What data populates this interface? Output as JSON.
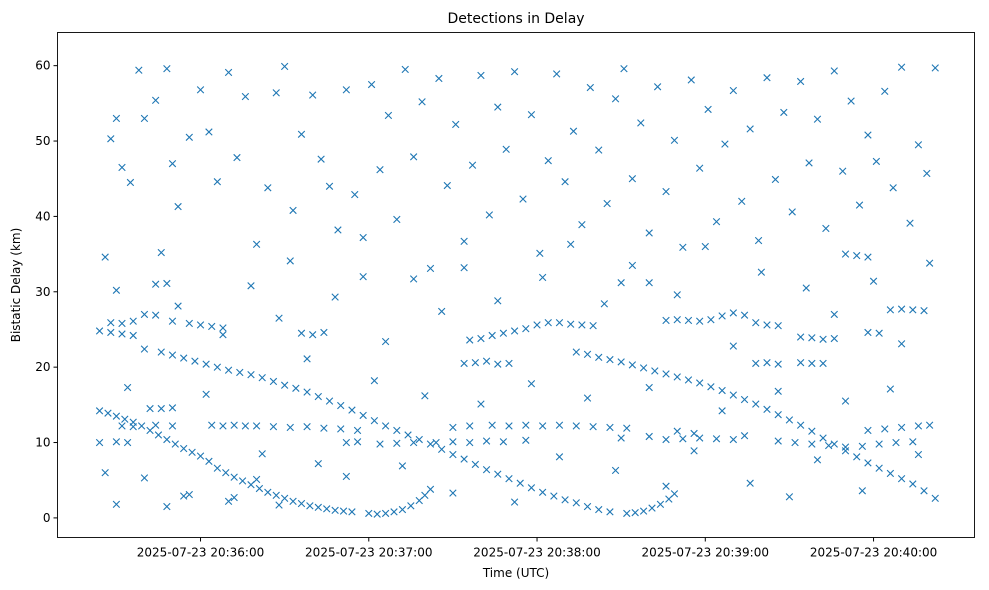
{
  "chart_data": {
    "type": "scatter",
    "title": "Detections in Delay",
    "xlabel": "Time (UTC)",
    "ylabel": "Bistatic Delay (km)",
    "x_units": "seconds relative to 2025-07-23 20:36:00",
    "xlim": [
      -51,
      276
    ],
    "ylim": [
      -2.6,
      64.4
    ],
    "marker": "x",
    "color": "#1f77b4",
    "grid": false,
    "xticks": [
      {
        "value": 0,
        "label": "2025-07-23 20:36:00"
      },
      {
        "value": 60,
        "label": "2025-07-23 20:37:00"
      },
      {
        "value": 120,
        "label": "2025-07-23 20:38:00"
      },
      {
        "value": 180,
        "label": "2025-07-23 20:39:00"
      },
      {
        "value": 240,
        "label": "2025-07-23 20:40:00"
      }
    ],
    "yticks": [
      {
        "value": 0,
        "label": "0"
      },
      {
        "value": 10,
        "label": "10"
      },
      {
        "value": 20,
        "label": "20"
      },
      {
        "value": 30,
        "label": "30"
      },
      {
        "value": 40,
        "label": "40"
      },
      {
        "value": 50,
        "label": "50"
      },
      {
        "value": 60,
        "label": "60"
      }
    ],
    "points": [
      [
        -36,
        14.2
      ],
      [
        -33,
        13.9
      ],
      [
        -30,
        13.5
      ],
      [
        -27,
        13.1
      ],
      [
        -24,
        12.7
      ],
      [
        -21,
        12.2
      ],
      [
        -18,
        11.6
      ],
      [
        -15,
        11
      ],
      [
        -12,
        10.4
      ],
      [
        -9,
        9.8
      ],
      [
        -6,
        9.2
      ],
      [
        -3,
        8.7
      ],
      [
        0,
        8.2
      ],
      [
        3,
        7.5
      ],
      [
        6,
        6.6
      ],
      [
        9,
        6
      ],
      [
        12,
        5.4
      ],
      [
        15,
        4.9
      ],
      [
        18,
        4.4
      ],
      [
        21,
        3.9
      ],
      [
        24,
        3.4
      ],
      [
        27,
        3
      ],
      [
        30,
        2.6
      ],
      [
        33,
        2.2
      ],
      [
        36,
        1.9
      ],
      [
        39,
        1.6
      ],
      [
        42,
        1.4
      ],
      [
        45,
        1.2
      ],
      [
        48,
        1
      ],
      [
        51,
        0.9
      ],
      [
        54,
        0.8
      ],
      [
        60,
        0.6
      ],
      [
        63,
        0.5
      ],
      [
        66,
        0.6
      ],
      [
        69,
        0.8
      ],
      [
        72,
        1.1
      ],
      [
        75,
        1.6
      ],
      [
        78,
        2.3
      ],
      [
        80,
        3
      ],
      [
        82,
        3.8
      ],
      [
        -14,
        22
      ],
      [
        -10,
        21.6
      ],
      [
        -6,
        21.2
      ],
      [
        -2,
        20.8
      ],
      [
        2,
        20.4
      ],
      [
        6,
        20
      ],
      [
        10,
        19.6
      ],
      [
        14,
        19.3
      ],
      [
        18,
        19
      ],
      [
        22,
        18.6
      ],
      [
        26,
        18.1
      ],
      [
        30,
        17.6
      ],
      [
        34,
        17.2
      ],
      [
        38,
        16.7
      ],
      [
        42,
        16.1
      ],
      [
        46,
        15.5
      ],
      [
        50,
        14.9
      ],
      [
        54,
        14.3
      ],
      [
        58,
        13.6
      ],
      [
        62,
        12.9
      ],
      [
        66,
        12.2
      ],
      [
        70,
        11.6
      ],
      [
        74,
        11
      ],
      [
        78,
        10.4
      ],
      [
        82,
        9.8
      ],
      [
        86,
        9.1
      ],
      [
        90,
        8.4
      ],
      [
        94,
        7.8
      ],
      [
        98,
        7.1
      ],
      [
        102,
        6.4
      ],
      [
        106,
        5.8
      ],
      [
        110,
        5.2
      ],
      [
        114,
        4.6
      ],
      [
        118,
        4
      ],
      [
        122,
        3.4
      ],
      [
        126,
        2.9
      ],
      [
        130,
        2.4
      ],
      [
        134,
        2
      ],
      [
        138,
        1.5
      ],
      [
        142,
        1.1
      ],
      [
        146,
        0.8
      ],
      [
        152,
        0.6
      ],
      [
        155,
        0.7
      ],
      [
        158,
        0.9
      ],
      [
        161,
        1.3
      ],
      [
        164,
        1.8
      ],
      [
        167,
        2.5
      ],
      [
        169,
        3.2
      ],
      [
        134,
        22
      ],
      [
        138,
        21.7
      ],
      [
        142,
        21.3
      ],
      [
        146,
        21
      ],
      [
        150,
        20.7
      ],
      [
        154,
        20.3
      ],
      [
        158,
        19.9
      ],
      [
        162,
        19.5
      ],
      [
        166,
        19.1
      ],
      [
        170,
        18.7
      ],
      [
        174,
        18.3
      ],
      [
        178,
        17.9
      ],
      [
        182,
        17.4
      ],
      [
        186,
        16.9
      ],
      [
        190,
        16.3
      ],
      [
        194,
        15.7
      ],
      [
        198,
        15.1
      ],
      [
        202,
        14.4
      ],
      [
        206,
        13.7
      ],
      [
        210,
        13
      ],
      [
        214,
        12.3
      ],
      [
        218,
        11.5
      ],
      [
        222,
        10.6
      ],
      [
        226,
        9.8
      ],
      [
        230,
        8.9
      ],
      [
        234,
        8.1
      ],
      [
        238,
        7.3
      ],
      [
        242,
        6.6
      ],
      [
        246,
        5.9
      ],
      [
        250,
        5.2
      ],
      [
        254,
        4.5
      ],
      [
        258,
        3.6
      ],
      [
        262,
        2.6
      ],
      [
        -28,
        12.2
      ],
      [
        -24,
        12.1
      ],
      [
        -16,
        12.3
      ],
      [
        -10,
        12.2
      ],
      [
        4,
        12.3
      ],
      [
        8,
        12.2
      ],
      [
        12,
        12.3
      ],
      [
        16,
        12.2
      ],
      [
        20,
        12.2
      ],
      [
        26,
        12.1
      ],
      [
        32,
        12
      ],
      [
        38,
        12.1
      ],
      [
        44,
        11.9
      ],
      [
        50,
        11.8
      ],
      [
        56,
        11.6
      ],
      [
        90,
        12
      ],
      [
        96,
        12.2
      ],
      [
        104,
        12.3
      ],
      [
        110,
        12.2
      ],
      [
        116,
        12.3
      ],
      [
        122,
        12.2
      ],
      [
        128,
        12.3
      ],
      [
        134,
        12.2
      ],
      [
        140,
        12.1
      ],
      [
        146,
        12
      ],
      [
        152,
        11.9
      ],
      [
        170,
        11.5
      ],
      [
        176,
        11.2
      ],
      [
        194,
        10.9
      ],
      [
        238,
        11.6
      ],
      [
        244,
        11.8
      ],
      [
        250,
        12
      ],
      [
        256,
        12.2
      ],
      [
        260,
        12.3
      ],
      [
        -36,
        10
      ],
      [
        -30,
        10.1
      ],
      [
        -26,
        10
      ],
      [
        52,
        10
      ],
      [
        56,
        10.1
      ],
      [
        64,
        9.8
      ],
      [
        70,
        9.9
      ],
      [
        76,
        10
      ],
      [
        84,
        10
      ],
      [
        90,
        10.1
      ],
      [
        96,
        10
      ],
      [
        102,
        10.2
      ],
      [
        108,
        10.1
      ],
      [
        116,
        10.3
      ],
      [
        150,
        10.6
      ],
      [
        160,
        10.8
      ],
      [
        166,
        10.4
      ],
      [
        172,
        10.5
      ],
      [
        178,
        10.6
      ],
      [
        184,
        10.5
      ],
      [
        190,
        10.4
      ],
      [
        206,
        10.2
      ],
      [
        212,
        10
      ],
      [
        218,
        9.8
      ],
      [
        224,
        9.6
      ],
      [
        230,
        9.4
      ],
      [
        236,
        9.5
      ],
      [
        242,
        9.8
      ],
      [
        248,
        10
      ],
      [
        254,
        10.1
      ],
      [
        -36,
        24.8
      ],
      [
        -32,
        24.6
      ],
      [
        -28,
        24.4
      ],
      [
        -24,
        24.2
      ],
      [
        -32,
        25.9
      ],
      [
        -28,
        25.8
      ],
      [
        -24,
        26.1
      ],
      [
        -20,
        27
      ],
      [
        -16,
        26.9
      ],
      [
        -10,
        26.1
      ],
      [
        -4,
        25.8
      ],
      [
        0,
        25.6
      ],
      [
        4,
        25.4
      ],
      [
        8,
        25.2
      ],
      [
        36,
        24.5
      ],
      [
        40,
        24.3
      ],
      [
        44,
        24.6
      ],
      [
        96,
        23.6
      ],
      [
        100,
        23.8
      ],
      [
        104,
        24.2
      ],
      [
        108,
        24.5
      ],
      [
        112,
        24.8
      ],
      [
        116,
        25.1
      ],
      [
        120,
        25.6
      ],
      [
        124,
        25.9
      ],
      [
        128,
        25.9
      ],
      [
        132,
        25.7
      ],
      [
        136,
        25.6
      ],
      [
        140,
        25.5
      ],
      [
        150,
        31.2
      ],
      [
        166,
        26.2
      ],
      [
        170,
        26.3
      ],
      [
        174,
        26.2
      ],
      [
        178,
        26.1
      ],
      [
        182,
        26.3
      ],
      [
        186,
        26.8
      ],
      [
        190,
        27.2
      ],
      [
        194,
        26.9
      ],
      [
        198,
        25.9
      ],
      [
        202,
        25.6
      ],
      [
        206,
        25.5
      ],
      [
        214,
        24
      ],
      [
        218,
        23.9
      ],
      [
        222,
        23.7
      ],
      [
        226,
        23.8
      ],
      [
        246,
        27.6
      ],
      [
        250,
        27.7
      ],
      [
        254,
        27.6
      ],
      [
        258,
        27.5
      ],
      [
        238,
        24.6
      ],
      [
        242,
        24.5
      ],
      [
        94,
        20.5
      ],
      [
        98,
        20.6
      ],
      [
        102,
        20.8
      ],
      [
        106,
        20.4
      ],
      [
        110,
        20.5
      ],
      [
        198,
        20.5
      ],
      [
        202,
        20.6
      ],
      [
        206,
        20.4
      ],
      [
        214,
        20.6
      ],
      [
        218,
        20.5
      ],
      [
        222,
        20.5
      ],
      [
        -16,
        31
      ],
      [
        -12,
        31.1
      ],
      [
        -18,
        14.5
      ],
      [
        -14,
        14.5
      ],
      [
        -10,
        14.6
      ],
      [
        160,
        31.2
      ],
      [
        230,
        35
      ],
      [
        234,
        34.8
      ],
      [
        238,
        34.6
      ],
      [
        -34,
        34.6
      ],
      [
        -32,
        50.3
      ],
      [
        -30,
        53
      ],
      [
        -28,
        46.5
      ],
      [
        -25,
        44.5
      ],
      [
        -22,
        59.4
      ],
      [
        -20,
        53
      ],
      [
        -16,
        55.4
      ],
      [
        -12,
        59.6
      ],
      [
        -8,
        41.3
      ],
      [
        -4,
        50.5
      ],
      [
        0,
        56.8
      ],
      [
        -10,
        47
      ],
      [
        3,
        51.2
      ],
      [
        6,
        44.6
      ],
      [
        10,
        59.1
      ],
      [
        13,
        47.8
      ],
      [
        16,
        55.9
      ],
      [
        20,
        36.3
      ],
      [
        24,
        43.8
      ],
      [
        27,
        56.4
      ],
      [
        30,
        59.9
      ],
      [
        33,
        40.8
      ],
      [
        36,
        50.9
      ],
      [
        40,
        56.1
      ],
      [
        43,
        47.6
      ],
      [
        46,
        44
      ],
      [
        49,
        38.2
      ],
      [
        52,
        56.8
      ],
      [
        55,
        42.9
      ],
      [
        58,
        32
      ],
      [
        61,
        57.5
      ],
      [
        64,
        46.2
      ],
      [
        67,
        53.4
      ],
      [
        70,
        39.6
      ],
      [
        73,
        59.5
      ],
      [
        76,
        47.9
      ],
      [
        79,
        55.2
      ],
      [
        82,
        33.1
      ],
      [
        85,
        58.3
      ],
      [
        88,
        44.1
      ],
      [
        91,
        52.2
      ],
      [
        94,
        36.7
      ],
      [
        97,
        46.8
      ],
      [
        100,
        58.7
      ],
      [
        103,
        40.2
      ],
      [
        106,
        54.5
      ],
      [
        109,
        48.9
      ],
      [
        112,
        59.2
      ],
      [
        115,
        42.3
      ],
      [
        118,
        53.5
      ],
      [
        121,
        35.1
      ],
      [
        124,
        47.4
      ],
      [
        127,
        58.9
      ],
      [
        130,
        44.6
      ],
      [
        133,
        51.3
      ],
      [
        136,
        38.9
      ],
      [
        139,
        57.1
      ],
      [
        142,
        48.8
      ],
      [
        145,
        41.7
      ],
      [
        148,
        55.6
      ],
      [
        151,
        59.6
      ],
      [
        154,
        45
      ],
      [
        157,
        52.4
      ],
      [
        160,
        37.8
      ],
      [
        163,
        57.2
      ],
      [
        166,
        43.3
      ],
      [
        169,
        50.1
      ],
      [
        172,
        35.9
      ],
      [
        175,
        58.1
      ],
      [
        178,
        46.4
      ],
      [
        181,
        54.2
      ],
      [
        184,
        39.3
      ],
      [
        187,
        49.6
      ],
      [
        190,
        56.7
      ],
      [
        193,
        42
      ],
      [
        196,
        51.6
      ],
      [
        199,
        36.8
      ],
      [
        202,
        58.4
      ],
      [
        205,
        44.9
      ],
      [
        208,
        53.8
      ],
      [
        211,
        40.6
      ],
      [
        214,
        57.9
      ],
      [
        217,
        47.1
      ],
      [
        220,
        52.9
      ],
      [
        223,
        38.4
      ],
      [
        226,
        59.3
      ],
      [
        229,
        46
      ],
      [
        232,
        55.3
      ],
      [
        235,
        41.5
      ],
      [
        238,
        50.8
      ],
      [
        241,
        47.3
      ],
      [
        244,
        56.6
      ],
      [
        247,
        43.8
      ],
      [
        250,
        59.8
      ],
      [
        253,
        39.1
      ],
      [
        256,
        49.5
      ],
      [
        259,
        45.7
      ],
      [
        262,
        59.7
      ],
      [
        -30,
        30.2
      ],
      [
        -26,
        17.3
      ],
      [
        -20,
        22.4
      ],
      [
        -14,
        35.2
      ],
      [
        -8,
        28.1
      ],
      [
        -4,
        3.1
      ],
      [
        2,
        16.4
      ],
      [
        8,
        24.3
      ],
      [
        12,
        2.7
      ],
      [
        18,
        30.8
      ],
      [
        22,
        8.5
      ],
      [
        28,
        26.5
      ],
      [
        32,
        34.1
      ],
      [
        38,
        21.1
      ],
      [
        42,
        7.2
      ],
      [
        48,
        29.3
      ],
      [
        52,
        5.5
      ],
      [
        58,
        37.2
      ],
      [
        62,
        18.2
      ],
      [
        66,
        23.4
      ],
      [
        72,
        6.9
      ],
      [
        76,
        31.7
      ],
      [
        80,
        16.2
      ],
      [
        86,
        27.4
      ],
      [
        90,
        3.3
      ],
      [
        94,
        33.2
      ],
      [
        100,
        15.1
      ],
      [
        106,
        28.8
      ],
      [
        112,
        2.1
      ],
      [
        118,
        17.8
      ],
      [
        122,
        31.9
      ],
      [
        128,
        8.1
      ],
      [
        132,
        36.3
      ],
      [
        138,
        15.9
      ],
      [
        144,
        28.4
      ],
      [
        148,
        6.3
      ],
      [
        154,
        33.5
      ],
      [
        160,
        17.3
      ],
      [
        166,
        4.2
      ],
      [
        170,
        29.6
      ],
      [
        176,
        8.9
      ],
      [
        180,
        36
      ],
      [
        186,
        14.2
      ],
      [
        190,
        22.8
      ],
      [
        196,
        4.6
      ],
      [
        200,
        32.6
      ],
      [
        206,
        16.8
      ],
      [
        210,
        2.8
      ],
      [
        216,
        30.5
      ],
      [
        220,
        7.7
      ],
      [
        226,
        27
      ],
      [
        230,
        15.5
      ],
      [
        236,
        3.6
      ],
      [
        240,
        31.4
      ],
      [
        246,
        17.1
      ],
      [
        250,
        23.1
      ],
      [
        256,
        8.4
      ],
      [
        260,
        33.8
      ],
      [
        -34,
        6
      ],
      [
        -30,
        1.8
      ],
      [
        -20,
        5.3
      ],
      [
        -12,
        1.5
      ],
      [
        -6,
        2.9
      ],
      [
        10,
        2.2
      ],
      [
        20,
        5.1
      ],
      [
        28,
        1.7
      ]
    ]
  }
}
